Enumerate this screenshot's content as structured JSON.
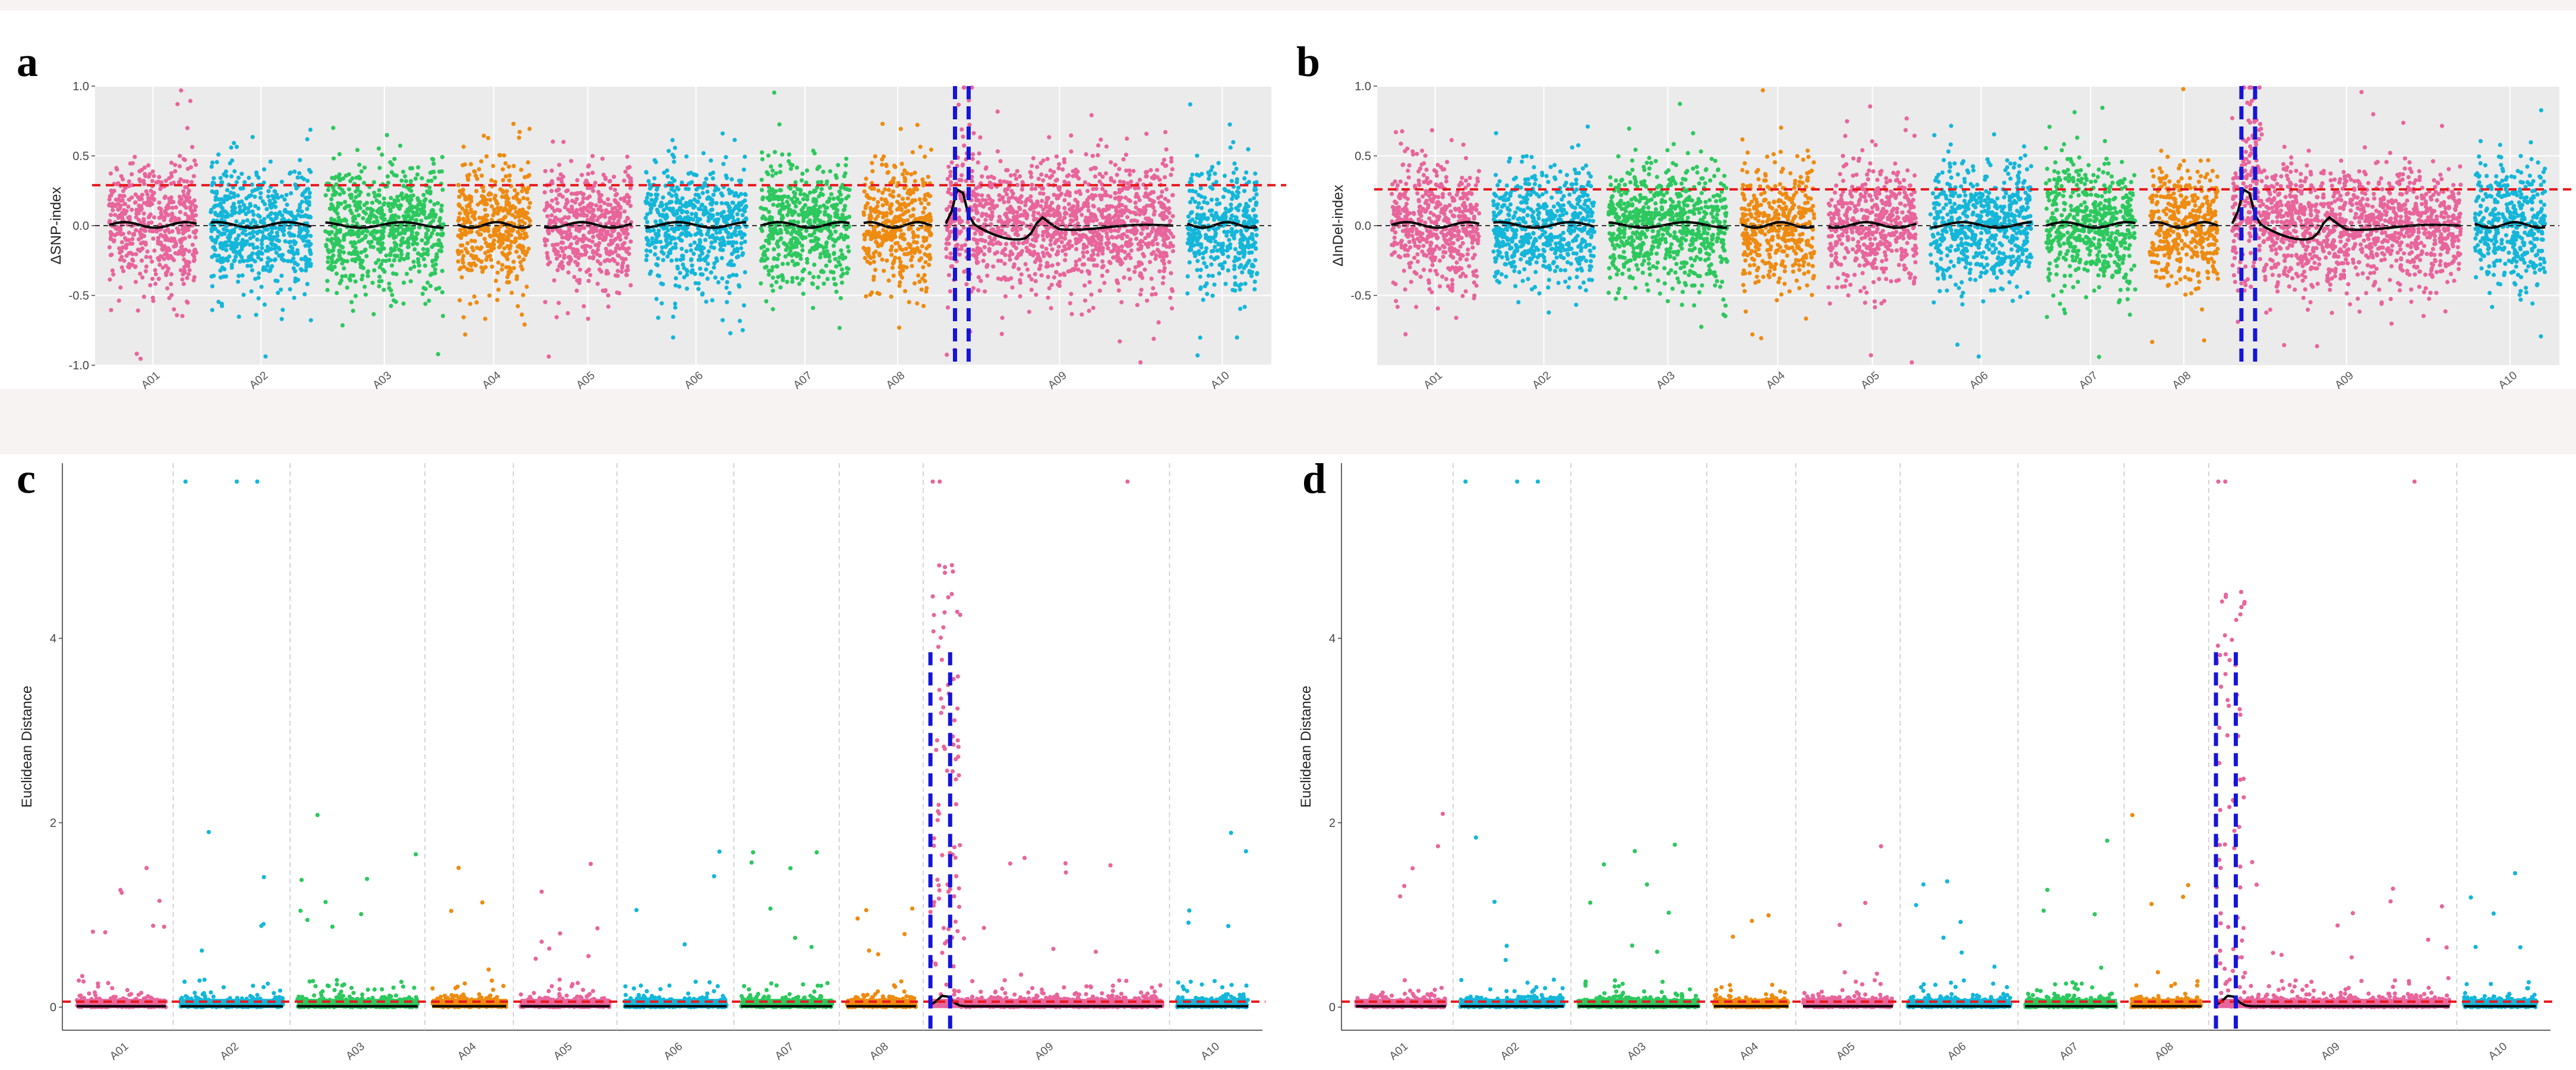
{
  "figure": {
    "colors": {
      "pink": "#e8659c",
      "cyan": "#14b6d9",
      "green": "#2dc85e",
      "orange": "#ee8b11",
      "threshold": "#e8171d",
      "highlight": "#1515d9",
      "smooth": "#000000",
      "plot_bg": "#ebebeb",
      "grid": "#ffffff"
    }
  },
  "chart_data": [
    {
      "id": "a",
      "panel_label": "a",
      "type": "scatter",
      "title": "",
      "xlabel": "",
      "ylabel": "ΔSNP-index",
      "ylim": [
        -1.0,
        1.0
      ],
      "yticks": [
        "1.0",
        "0.5",
        "0.0",
        "-0.5",
        "-1.0"
      ],
      "ytick_values": [
        1.0,
        0.5,
        0.0,
        -0.5,
        -1.0
      ],
      "threshold": 0.29,
      "zero_line": 0.0,
      "background": "grey",
      "chromosomes": [
        "A01",
        "A02",
        "A03",
        "A04",
        "A05",
        "A06",
        "A07",
        "A08",
        "A09",
        "A10"
      ],
      "chrom_lengths": [
        1,
        1.15,
        1.35,
        0.83,
        1.0,
        1.15,
        1.02,
        0.78,
        2.6,
        0.8
      ],
      "chrom_colors": [
        "pink",
        "cyan",
        "green",
        "orange",
        "pink",
        "cyan",
        "green",
        "orange",
        "pink",
        "cyan"
      ],
      "highlight_region": {
        "chrom": "A09",
        "start": 0.04,
        "end": 0.1
      },
      "peak_region": {
        "chrom": "A09",
        "start": 0.04,
        "end": 0.13
      }
    },
    {
      "id": "b",
      "panel_label": "b",
      "type": "scatter",
      "title": "",
      "xlabel": "",
      "ylabel": "ΔInDel-index",
      "ylim": [
        -1.0,
        1.0
      ],
      "yticks": [
        "1.0",
        "0.5",
        "0.0",
        "-0.5"
      ],
      "ytick_values": [
        1.0,
        0.5,
        0.0,
        -0.5
      ],
      "threshold": 0.26,
      "zero_line": 0.0,
      "background": "grey",
      "chromosomes": [
        "A01",
        "A02",
        "A03",
        "A04",
        "A05",
        "A06",
        "A07",
        "A08",
        "A09",
        "A10"
      ],
      "chrom_lengths": [
        1,
        1.15,
        1.35,
        0.83,
        1.0,
        1.15,
        1.02,
        0.78,
        2.6,
        0.8
      ],
      "chrom_colors": [
        "pink",
        "cyan",
        "green",
        "orange",
        "pink",
        "cyan",
        "green",
        "orange",
        "pink",
        "cyan"
      ],
      "highlight_region": {
        "chrom": "A09",
        "start": 0.04,
        "end": 0.1
      },
      "peak_region": {
        "chrom": "A09",
        "start": 0.04,
        "end": 0.13
      }
    },
    {
      "id": "c",
      "panel_label": "c",
      "type": "scatter",
      "title": "",
      "xlabel": "",
      "ylabel": "Euclidean Distance",
      "ylim": [
        -0.25,
        5.9
      ],
      "yticks": [
        "4",
        "2",
        "0"
      ],
      "ytick_values": [
        4,
        2,
        0
      ],
      "threshold": 0.06,
      "background": "white",
      "chromosomes": [
        "A01",
        "A02",
        "A03",
        "A04",
        "A05",
        "A06",
        "A07",
        "A08",
        "A09",
        "A10"
      ],
      "chrom_lengths": [
        1,
        1.15,
        1.35,
        0.83,
        1.0,
        1.15,
        1.02,
        0.78,
        2.6,
        0.8
      ],
      "chrom_colors": [
        "pink",
        "cyan",
        "green",
        "orange",
        "pink",
        "cyan",
        "green",
        "orange",
        "pink",
        "cyan"
      ],
      "highlight_region": {
        "chrom": "A09",
        "start": 0.0,
        "end": 0.085,
        "ymax": 3.85
      },
      "peak_region": {
        "chrom": "A09",
        "start": 0.0,
        "end": 0.13
      },
      "peak_max": 4.8,
      "capped_value": 5.7
    },
    {
      "id": "d",
      "panel_label": "d",
      "type": "scatter",
      "title": "",
      "xlabel": "",
      "ylabel": "Euclidean Distance",
      "ylim": [
        -0.25,
        5.9
      ],
      "yticks": [
        "4",
        "2",
        "0"
      ],
      "ytick_values": [
        4,
        2,
        0
      ],
      "threshold": 0.06,
      "background": "white",
      "chromosomes": [
        "A01",
        "A02",
        "A03",
        "A04",
        "A05",
        "A06",
        "A07",
        "A08",
        "A09",
        "A10"
      ],
      "chrom_lengths": [
        1,
        1.15,
        1.35,
        0.83,
        1.0,
        1.15,
        1.02,
        0.78,
        2.6,
        0.8
      ],
      "chrom_colors": [
        "pink",
        "cyan",
        "green",
        "orange",
        "pink",
        "cyan",
        "green",
        "orange",
        "pink",
        "cyan"
      ],
      "highlight_region": {
        "chrom": "A09",
        "start": 0.0,
        "end": 0.085,
        "ymax": 3.85
      },
      "peak_region": {
        "chrom": "A09",
        "start": 0.0,
        "end": 0.13
      },
      "peak_max": 4.6,
      "capped_value": 5.7
    }
  ]
}
